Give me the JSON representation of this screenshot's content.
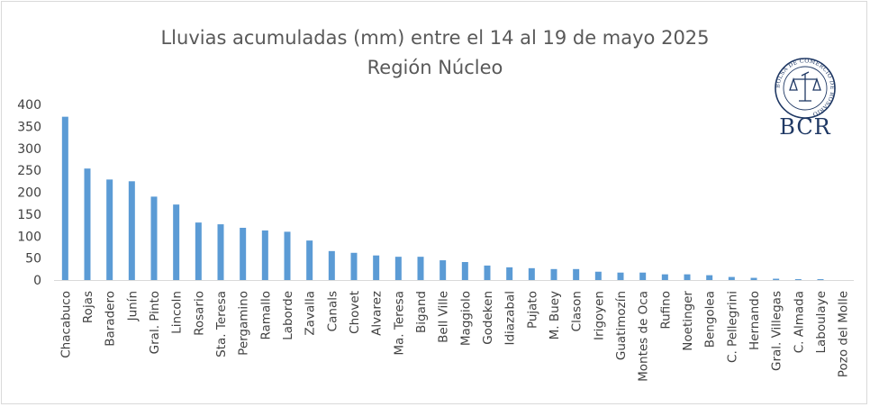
{
  "chart_data": {
    "type": "bar",
    "title": "Lluvias acumuladas (mm) entre el 14 al 19 de mayo 2025",
    "subtitle": "Región Núcleo",
    "xlabel": "",
    "ylabel": "",
    "ylim": [
      0,
      400
    ],
    "yticks": [
      "0",
      "50",
      "100",
      "150",
      "200",
      "250",
      "300",
      "350",
      "400"
    ],
    "grid": false,
    "legend": "none",
    "bar_color": "#5b9bd5",
    "categories": [
      "Chacabuco",
      "Rojas",
      "Baradero",
      "Junín",
      "Gral. Pinto",
      "Lincoln",
      "Rosario",
      "Sta. Teresa",
      "Pergamino",
      "Ramallo",
      "Laborde",
      "Zavalla",
      "Canals",
      "Chovet",
      "Alvarez",
      "Ma. Teresa",
      "Bigand",
      "Bell Ville",
      "Maggiolo",
      "Godeken",
      "Idiazabal",
      "Pujato",
      "M. Buey",
      "Clason",
      "Irigoyen",
      "Guatimozín",
      "Montes de Oca",
      "Rufino",
      "Noetinger",
      "Bengolea",
      "C. Pellegrini",
      "Hernando",
      "Gral. Villegas",
      "C. Almada",
      "Laboulaye",
      "Pozo del Molle"
    ],
    "values": [
      372,
      254,
      229,
      225,
      190,
      172,
      131,
      127,
      119,
      113,
      110,
      90,
      66,
      62,
      56,
      53,
      53,
      45,
      41,
      33,
      29,
      27,
      25,
      25,
      19,
      17,
      17,
      13,
      13,
      11,
      7,
      5,
      3,
      2,
      2,
      0
    ]
  },
  "logo": {
    "text": "BCR",
    "seal_text": "BOLSA DE COMERCIO DE ROSARIO",
    "color": "#1f3864"
  }
}
